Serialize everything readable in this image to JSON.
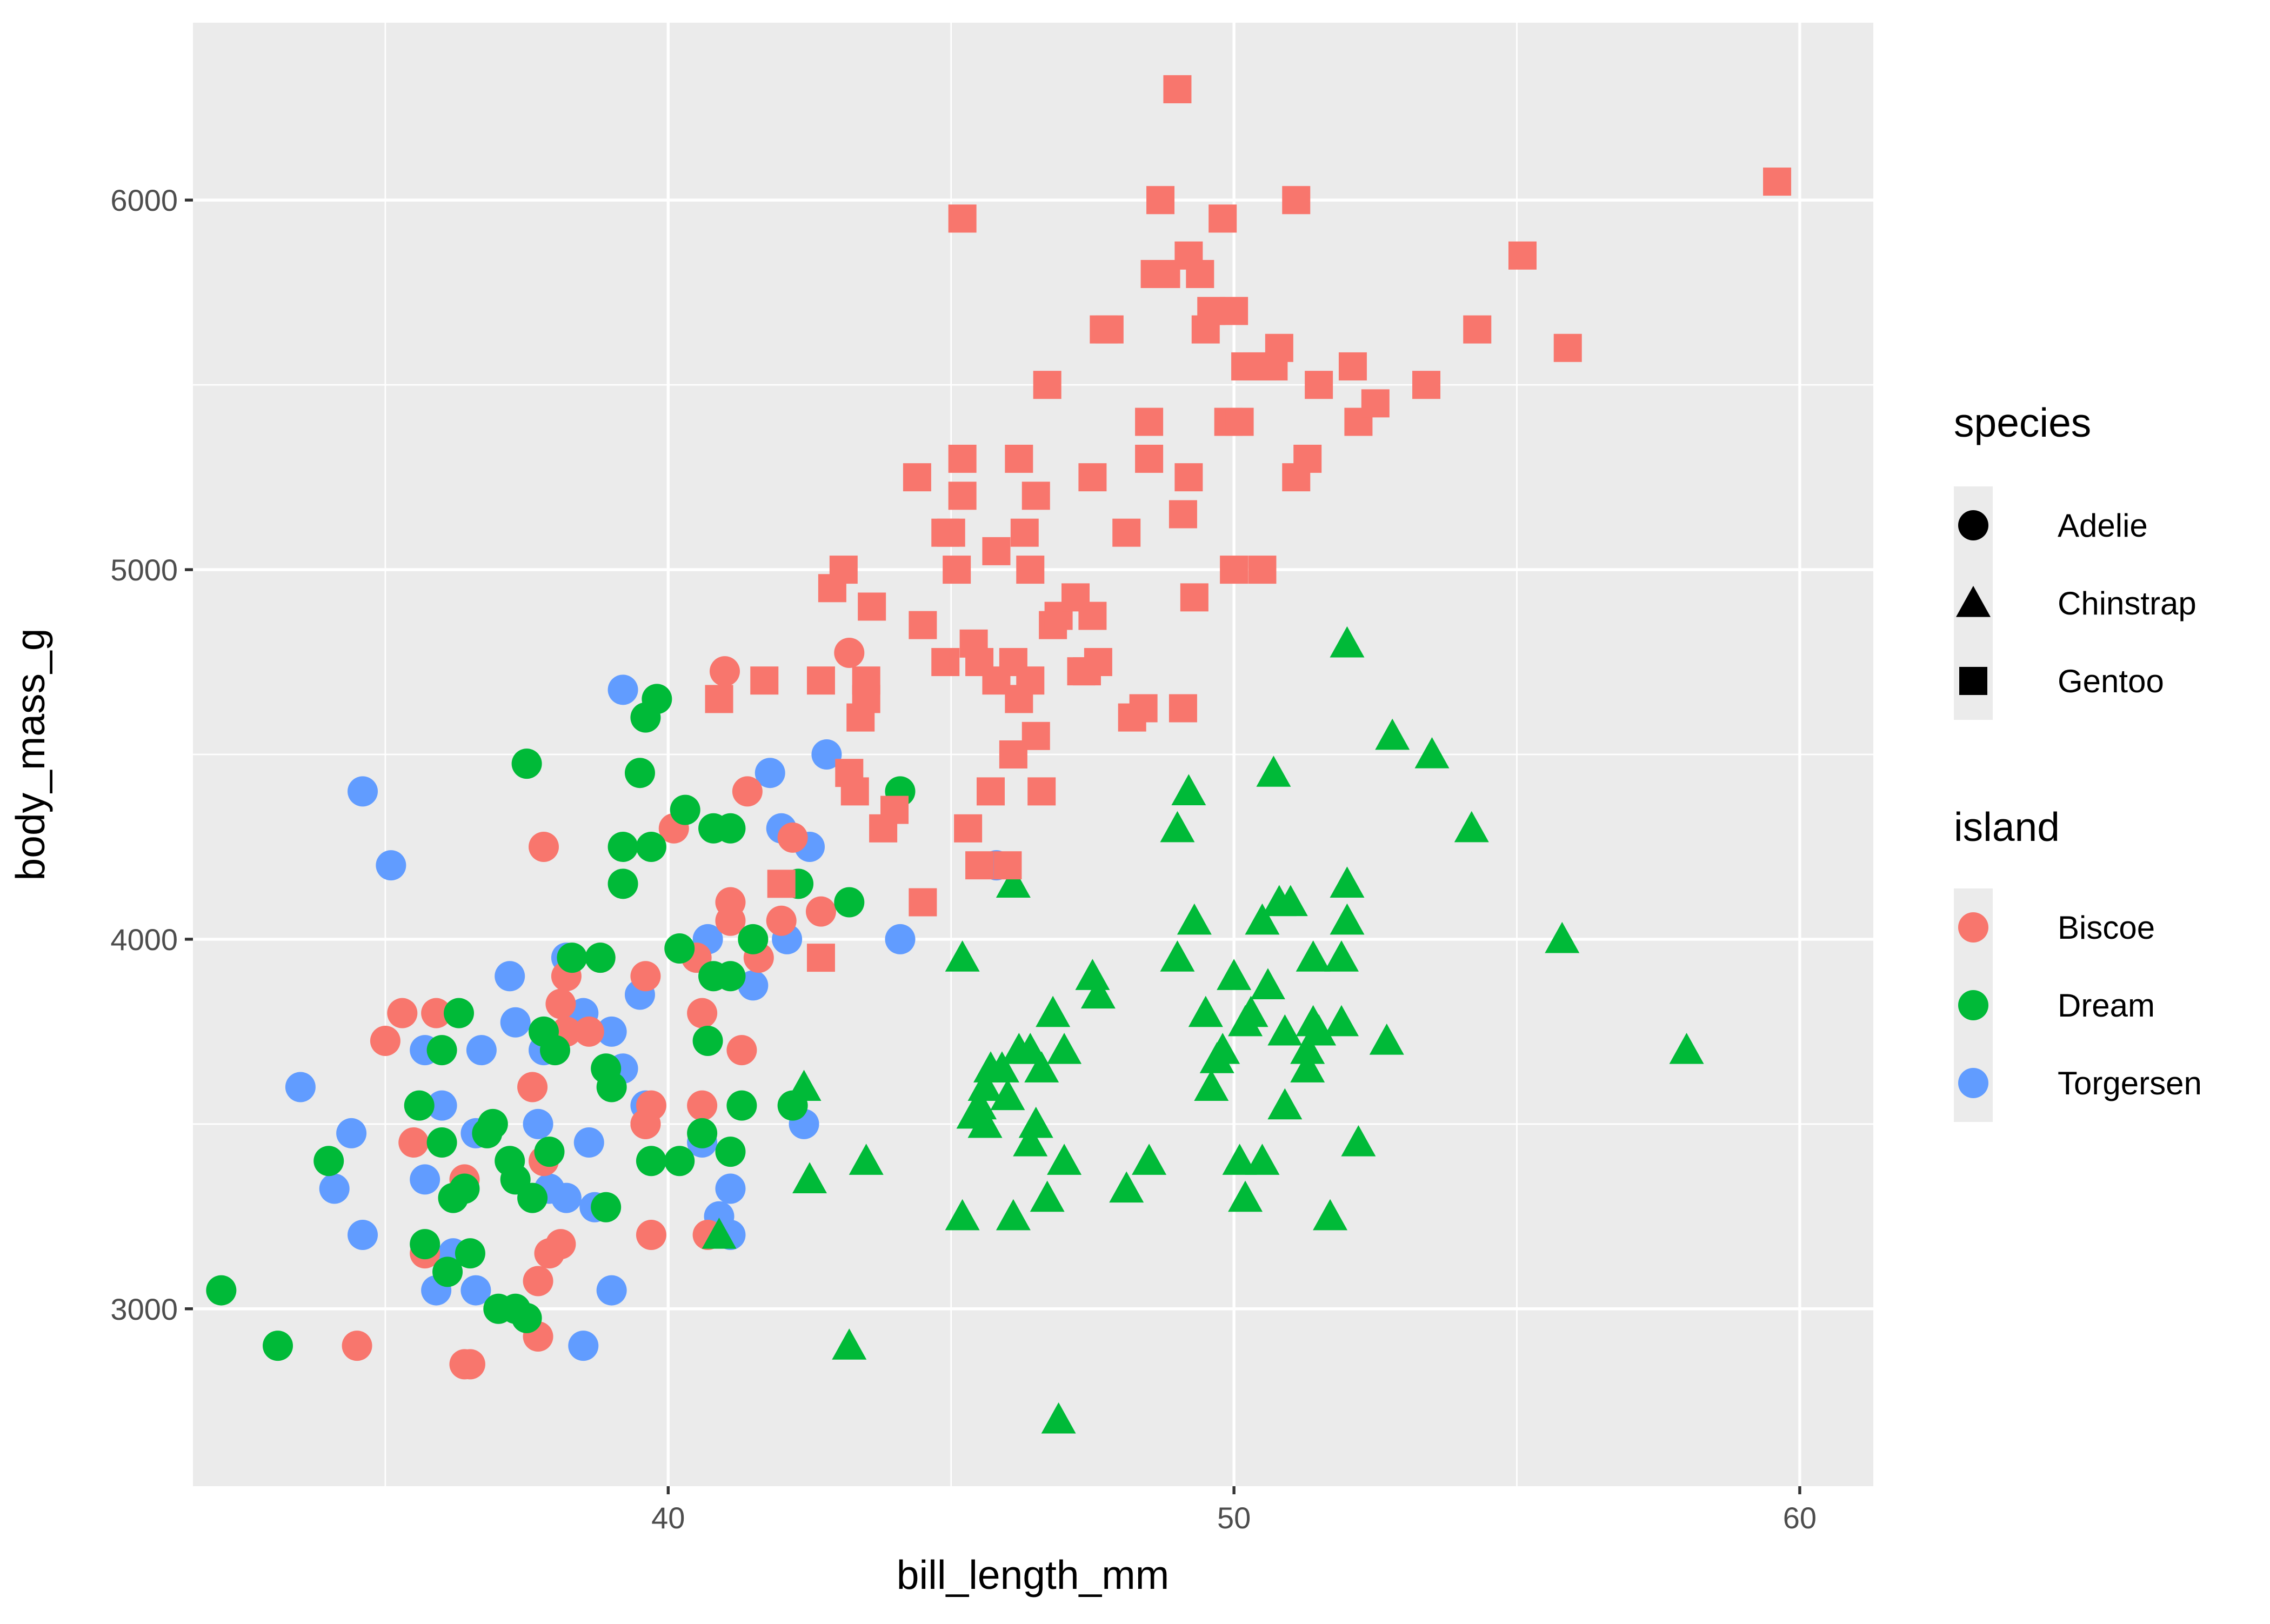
{
  "chart_data": {
    "type": "scatter",
    "xlabel": "bill_length_mm",
    "ylabel": "body_mass_g",
    "xlim": [
      31.6,
      61.3
    ],
    "ylim": [
      2520,
      6480
    ],
    "x_ticks": [
      40,
      50,
      60
    ],
    "y_ticks": [
      3000,
      4000,
      5000,
      6000
    ],
    "x_minor": [
      35,
      45,
      55
    ],
    "y_minor": [
      3500,
      4500,
      5500
    ],
    "grid": true,
    "legend_position": "right",
    "legends": [
      {
        "title": "species",
        "aesthetic": "shape",
        "entries": [
          "Adelie",
          "Chinstrap",
          "Gentoo"
        ]
      },
      {
        "title": "island",
        "aesthetic": "color",
        "entries": [
          "Biscoe",
          "Dream",
          "Torgersen"
        ]
      }
    ],
    "colors": {
      "Biscoe": "#F8766D",
      "Dream": "#00BA38",
      "Torgersen": "#619CFF",
      "panel": "#EBEBEB",
      "grid": "#FFFFFF"
    },
    "shapes": {
      "Adelie": "circle",
      "Chinstrap": "triangle",
      "Gentoo": "square"
    },
    "series": [
      {
        "species": "Adelie",
        "island": "Torgersen",
        "points": [
          [
            34.6,
            4400
          ],
          [
            35.1,
            4200
          ],
          [
            33.5,
            3600
          ],
          [
            34.4,
            3475
          ],
          [
            34.6,
            3200
          ],
          [
            35.9,
            3050
          ],
          [
            36.6,
            3050
          ],
          [
            36.2,
            3150
          ],
          [
            36.7,
            3700
          ],
          [
            37.2,
            3900
          ],
          [
            37.3,
            3775
          ],
          [
            37.7,
            3500
          ],
          [
            37.8,
            3700
          ],
          [
            38.5,
            3800
          ],
          [
            38.6,
            3450
          ],
          [
            38.7,
            3275
          ],
          [
            39.0,
            3750
          ],
          [
            39.2,
            4675
          ],
          [
            39.2,
            3650
          ],
          [
            39.6,
            3550
          ],
          [
            40.6,
            3450
          ],
          [
            41.1,
            3325
          ],
          [
            41.1,
            3200
          ],
          [
            40.9,
            3250
          ],
          [
            38.5,
            2900
          ],
          [
            39.0,
            3050
          ],
          [
            36.0,
            3550
          ],
          [
            35.7,
            3700
          ],
          [
            38.2,
            3300
          ],
          [
            42.1,
            4000
          ],
          [
            42.0,
            4300
          ],
          [
            41.5,
            3875
          ],
          [
            42.5,
            4250
          ],
          [
            40.7,
            4000
          ],
          [
            44.1,
            4000
          ],
          [
            42.4,
            3500
          ],
          [
            45.8,
            4200
          ],
          [
            36.6,
            3475
          ],
          [
            37.9,
            3325
          ],
          [
            38.2,
            3950
          ],
          [
            39.5,
            3850
          ],
          [
            42.8,
            4500
          ],
          [
            41.8,
            4450
          ],
          [
            35.7,
            3350
          ],
          [
            34.1,
            3325
          ]
        ]
      },
      {
        "species": "Adelie",
        "island": "Biscoe",
        "points": [
          [
            34.5,
            2900
          ],
          [
            35.0,
            3725
          ],
          [
            35.3,
            3800
          ],
          [
            35.5,
            3450
          ],
          [
            35.9,
            3800
          ],
          [
            36.4,
            2850
          ],
          [
            36.5,
            2850
          ],
          [
            37.6,
            3600
          ],
          [
            37.7,
            3075
          ],
          [
            37.9,
            3150
          ],
          [
            37.8,
            3400
          ],
          [
            38.1,
            3175
          ],
          [
            38.2,
            3900
          ],
          [
            38.6,
            3750
          ],
          [
            38.8,
            3950
          ],
          [
            39.6,
            3500
          ],
          [
            39.6,
            3900
          ],
          [
            39.7,
            3550
          ],
          [
            39.7,
            3200
          ],
          [
            40.1,
            4300
          ],
          [
            40.6,
            3550
          ],
          [
            40.6,
            3800
          ],
          [
            40.5,
            3950
          ],
          [
            41.0,
            4725
          ],
          [
            41.1,
            4050
          ],
          [
            41.3,
            3700
          ],
          [
            41.4,
            4400
          ],
          [
            41.6,
            3950
          ],
          [
            42.0,
            4050
          ],
          [
            42.2,
            4275
          ],
          [
            42.7,
            4075
          ],
          [
            43.2,
            4775
          ],
          [
            37.8,
            4250
          ],
          [
            38.1,
            3825
          ],
          [
            38.2,
            3750
          ],
          [
            40.7,
            3200
          ],
          [
            41.1,
            4100
          ],
          [
            36.4,
            3350
          ],
          [
            37.7,
            2925
          ],
          [
            35.7,
            3150
          ],
          [
            39.6,
            3500
          ]
        ]
      },
      {
        "species": "Adelie",
        "island": "Dream",
        "points": [
          [
            32.1,
            3050
          ],
          [
            33.1,
            2900
          ],
          [
            34.0,
            3400
          ],
          [
            35.7,
            3175
          ],
          [
            35.6,
            3550
          ],
          [
            36.0,
            3700
          ],
          [
            36.0,
            3450
          ],
          [
            36.2,
            3300
          ],
          [
            36.3,
            3800
          ],
          [
            36.4,
            3325
          ],
          [
            36.5,
            3150
          ],
          [
            36.8,
            3475
          ],
          [
            36.9,
            3500
          ],
          [
            37.0,
            3000
          ],
          [
            37.2,
            3400
          ],
          [
            37.3,
            3350
          ],
          [
            37.3,
            3000
          ],
          [
            37.5,
            2975
          ],
          [
            37.6,
            3300
          ],
          [
            37.5,
            4475
          ],
          [
            37.8,
            3750
          ],
          [
            37.9,
            3425
          ],
          [
            38.0,
            3700
          ],
          [
            38.3,
            3950
          ],
          [
            38.8,
            3950
          ],
          [
            38.9,
            3650
          ],
          [
            39.0,
            3600
          ],
          [
            39.2,
            4150
          ],
          [
            39.2,
            4250
          ],
          [
            39.5,
            4450
          ],
          [
            39.6,
            4600
          ],
          [
            39.7,
            4250
          ],
          [
            39.8,
            4650
          ],
          [
            40.2,
            3400
          ],
          [
            40.2,
            3975
          ],
          [
            40.3,
            4350
          ],
          [
            40.6,
            3475
          ],
          [
            40.7,
            3725
          ],
          [
            40.8,
            4300
          ],
          [
            40.8,
            3900
          ],
          [
            41.1,
            3900
          ],
          [
            41.1,
            4300
          ],
          [
            41.1,
            3425
          ],
          [
            41.3,
            3550
          ],
          [
            41.5,
            4000
          ],
          [
            42.2,
            3550
          ],
          [
            42.3,
            4150
          ],
          [
            43.2,
            4100
          ],
          [
            44.1,
            4400
          ],
          [
            36.1,
            3100
          ],
          [
            38.9,
            3275
          ],
          [
            39.7,
            3400
          ]
        ]
      },
      {
        "species": "Chinstrap",
        "island": "Dream",
        "points": [
          [
            40.9,
            3200
          ],
          [
            42.4,
            3600
          ],
          [
            42.5,
            3350
          ],
          [
            43.2,
            2900
          ],
          [
            43.5,
            3400
          ],
          [
            45.2,
            3950
          ],
          [
            45.2,
            3250
          ],
          [
            45.4,
            3525
          ],
          [
            45.5,
            3550
          ],
          [
            45.6,
            3600
          ],
          [
            45.7,
            3650
          ],
          [
            45.9,
            3650
          ],
          [
            46.0,
            3575
          ],
          [
            46.1,
            4150
          ],
          [
            46.1,
            3250
          ],
          [
            46.4,
            3700
          ],
          [
            46.4,
            3450
          ],
          [
            46.5,
            3500
          ],
          [
            46.6,
            3650
          ],
          [
            46.7,
            3300
          ],
          [
            46.8,
            3800
          ],
          [
            46.9,
            2700
          ],
          [
            47.0,
            3700
          ],
          [
            47.5,
            3900
          ],
          [
            47.6,
            3850
          ],
          [
            48.1,
            3325
          ],
          [
            48.5,
            3400
          ],
          [
            49.0,
            4300
          ],
          [
            49.0,
            3950
          ],
          [
            49.2,
            4400
          ],
          [
            49.3,
            4050
          ],
          [
            49.5,
            3800
          ],
          [
            49.6,
            3600
          ],
          [
            49.7,
            3675
          ],
          [
            49.8,
            3700
          ],
          [
            50.0,
            3900
          ],
          [
            50.1,
            3400
          ],
          [
            50.2,
            3300
          ],
          [
            50.2,
            3775
          ],
          [
            50.3,
            3800
          ],
          [
            50.5,
            3400
          ],
          [
            50.5,
            4050
          ],
          [
            50.6,
            3875
          ],
          [
            50.7,
            4450
          ],
          [
            50.8,
            4100
          ],
          [
            50.9,
            3550
          ],
          [
            51.0,
            4100
          ],
          [
            51.3,
            3650
          ],
          [
            51.3,
            3700
          ],
          [
            51.4,
            3950
          ],
          [
            51.5,
            3750
          ],
          [
            51.4,
            3775
          ],
          [
            51.7,
            3250
          ],
          [
            51.9,
            3950
          ],
          [
            51.9,
            3775
          ],
          [
            52.0,
            4050
          ],
          [
            52.0,
            4800
          ],
          [
            52.0,
            4150
          ],
          [
            52.2,
            3450
          ],
          [
            52.7,
            3725
          ],
          [
            52.8,
            4550
          ],
          [
            53.5,
            4500
          ],
          [
            54.2,
            4300
          ],
          [
            55.8,
            4000
          ],
          [
            58.0,
            3700
          ],
          [
            45.6,
            3500
          ],
          [
            46.2,
            3700
          ],
          [
            47.0,
            3400
          ],
          [
            50.9,
            3750
          ]
        ]
      },
      {
        "species": "Gentoo",
        "island": "Biscoe",
        "points": [
          [
            40.9,
            4650
          ],
          [
            41.7,
            4700
          ],
          [
            42.0,
            4150
          ],
          [
            42.7,
            3950
          ],
          [
            42.7,
            4700
          ],
          [
            42.9,
            4950
          ],
          [
            43.1,
            5000
          ],
          [
            43.2,
            4450
          ],
          [
            43.3,
            4400
          ],
          [
            43.4,
            4600
          ],
          [
            43.5,
            4650
          ],
          [
            43.5,
            4700
          ],
          [
            43.6,
            4900
          ],
          [
            43.8,
            4300
          ],
          [
            44.0,
            4350
          ],
          [
            44.4,
            5250
          ],
          [
            44.5,
            4100
          ],
          [
            44.5,
            4850
          ],
          [
            44.9,
            4750
          ],
          [
            45.0,
            5100
          ],
          [
            45.1,
            5000
          ],
          [
            45.2,
            5300
          ],
          [
            45.2,
            5950
          ],
          [
            45.2,
            5200
          ],
          [
            45.3,
            4300
          ],
          [
            45.4,
            4800
          ],
          [
            45.5,
            4750
          ],
          [
            45.5,
            4200
          ],
          [
            45.7,
            4400
          ],
          [
            45.8,
            4700
          ],
          [
            45.8,
            5050
          ],
          [
            46.1,
            4500
          ],
          [
            46.2,
            4650
          ],
          [
            46.2,
            5300
          ],
          [
            46.3,
            5100
          ],
          [
            46.4,
            5000
          ],
          [
            46.4,
            4700
          ],
          [
            46.5,
            4550
          ],
          [
            46.5,
            5200
          ],
          [
            46.6,
            4400
          ],
          [
            46.7,
            5500
          ],
          [
            46.8,
            4850
          ],
          [
            46.9,
            4875
          ],
          [
            47.2,
            4925
          ],
          [
            47.3,
            4725
          ],
          [
            47.4,
            4725
          ],
          [
            47.5,
            4875
          ],
          [
            47.5,
            5250
          ],
          [
            47.7,
            5650
          ],
          [
            47.8,
            5650
          ],
          [
            48.1,
            5100
          ],
          [
            48.2,
            4600
          ],
          [
            48.4,
            4625
          ],
          [
            48.5,
            5400
          ],
          [
            48.5,
            5300
          ],
          [
            48.6,
            5800
          ],
          [
            48.7,
            6000
          ],
          [
            48.8,
            5800
          ],
          [
            49.0,
            6300
          ],
          [
            49.1,
            4625
          ],
          [
            49.1,
            5150
          ],
          [
            49.2,
            5850
          ],
          [
            49.3,
            4925
          ],
          [
            49.4,
            5800
          ],
          [
            49.5,
            5650
          ],
          [
            49.6,
            5700
          ],
          [
            49.8,
            5950
          ],
          [
            49.9,
            5400
          ],
          [
            50.0,
            5000
          ],
          [
            50.0,
            5700
          ],
          [
            50.1,
            5400
          ],
          [
            50.2,
            5550
          ],
          [
            50.4,
            5550
          ],
          [
            50.5,
            5000
          ],
          [
            50.5,
            5550
          ],
          [
            50.7,
            5550
          ],
          [
            50.8,
            5600
          ],
          [
            51.1,
            5250
          ],
          [
            51.1,
            6000
          ],
          [
            51.3,
            5300
          ],
          [
            51.5,
            5500
          ],
          [
            52.1,
            5550
          ],
          [
            52.2,
            5400
          ],
          [
            52.5,
            5450
          ],
          [
            53.4,
            5500
          ],
          [
            54.3,
            5650
          ],
          [
            55.1,
            5850
          ],
          [
            55.9,
            5600
          ],
          [
            59.6,
            6050
          ],
          [
            46.1,
            4750
          ],
          [
            46.0,
            4200
          ],
          [
            44.9,
            5100
          ],
          [
            47.6,
            4750
          ],
          [
            49.2,
            5250
          ]
        ]
      }
    ]
  }
}
